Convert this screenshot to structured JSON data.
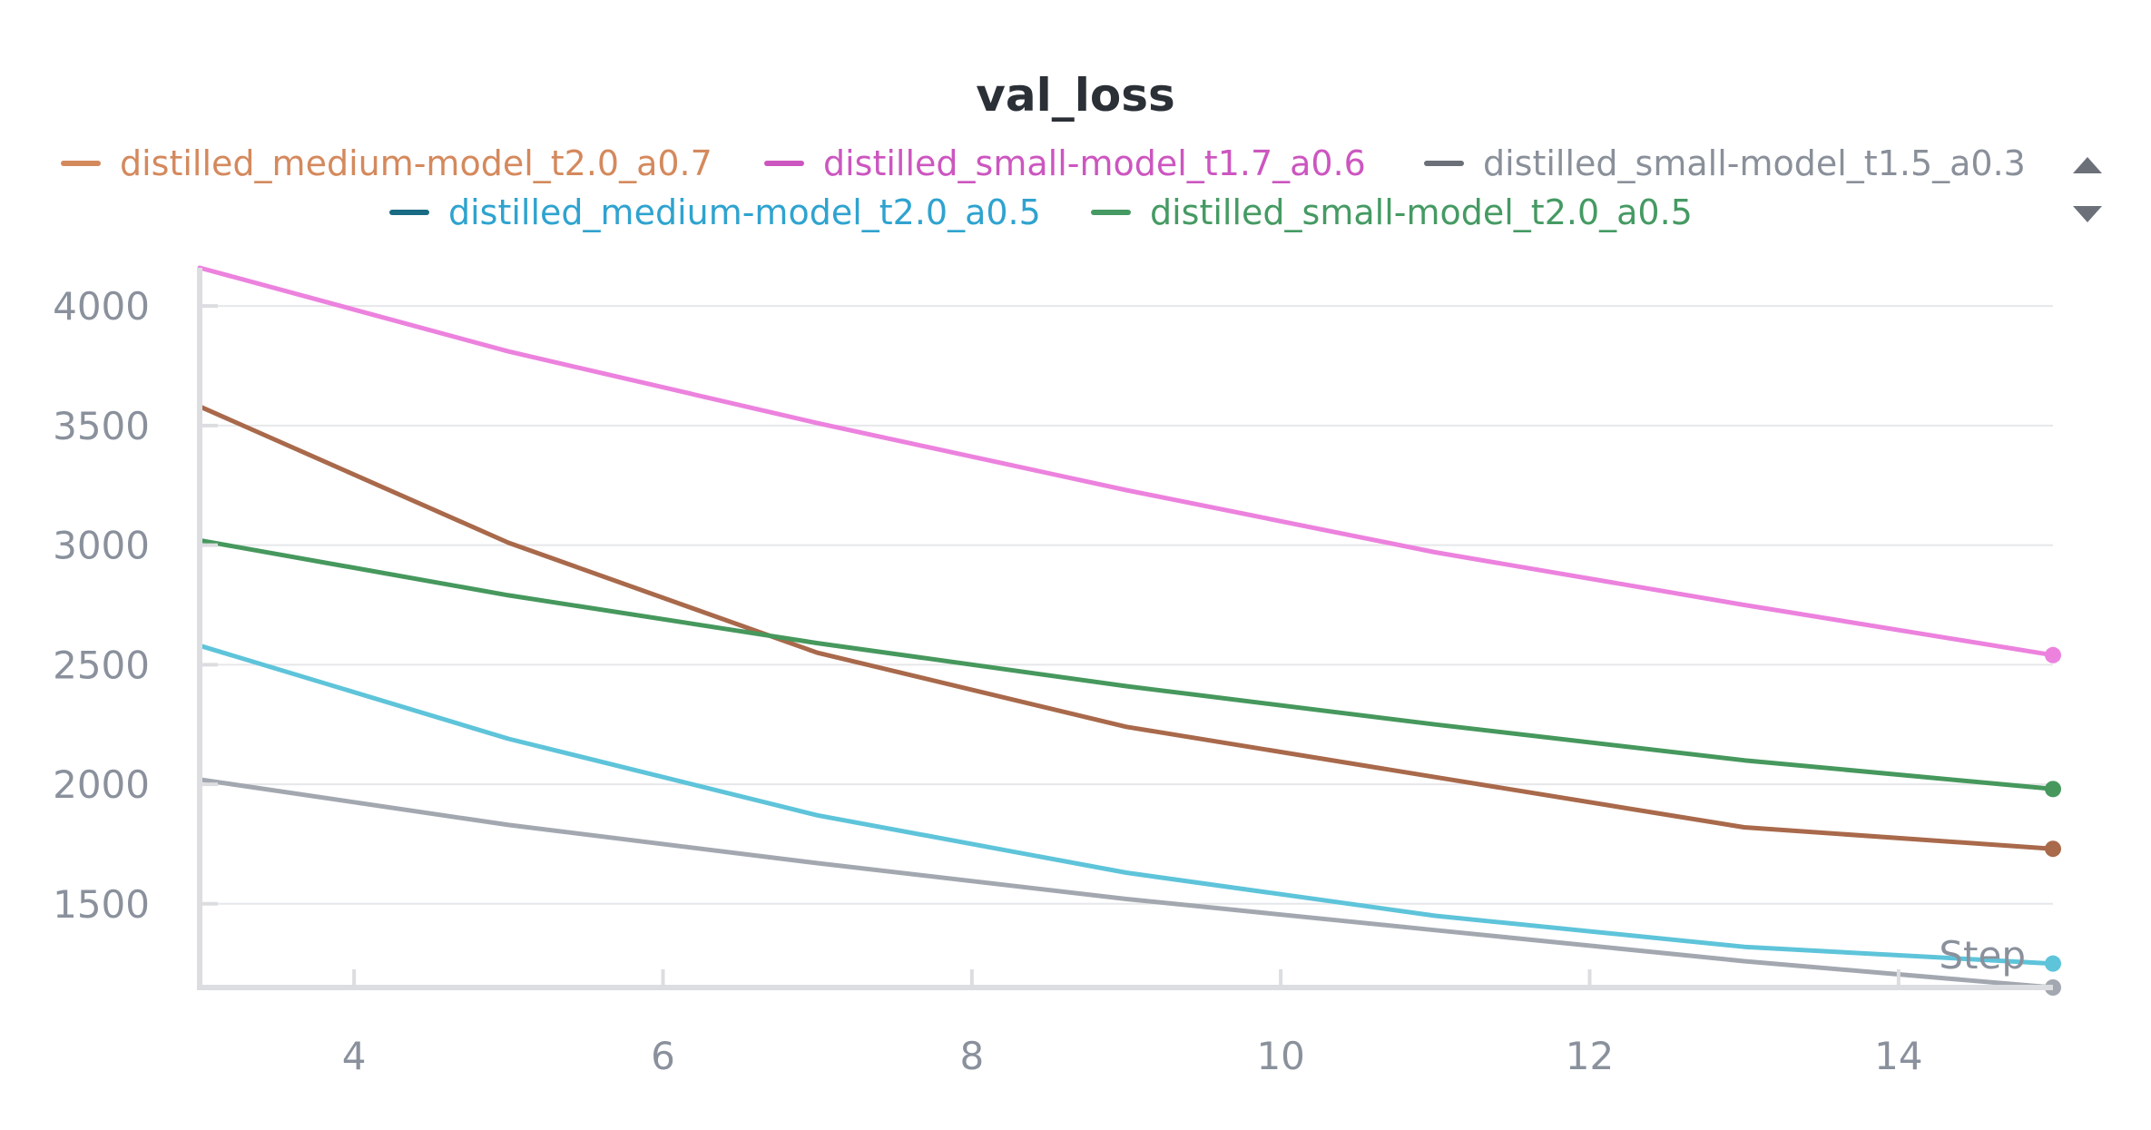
{
  "chart_data": {
    "type": "line",
    "title": "val_loss",
    "xlabel": "Step",
    "ylabel": "",
    "xlim": [
      3,
      15
    ],
    "ylim": [
      1150,
      4160
    ],
    "xticks": [
      4,
      6,
      8,
      10,
      12,
      14
    ],
    "yticks": [
      1500,
      2000,
      2500,
      3000,
      3500,
      4000
    ],
    "grid": true,
    "legend_position": "top",
    "series": [
      {
        "name": "distilled_medium-model_t2.0_a0.7",
        "legend_color": "#d4895d",
        "line_color": "#a9694b",
        "points": [
          [
            3,
            3580
          ],
          [
            5,
            3010
          ],
          [
            7,
            2550
          ],
          [
            9,
            2240
          ],
          [
            11,
            2030
          ],
          [
            13,
            1820
          ],
          [
            15,
            1730
          ]
        ]
      },
      {
        "name": "distilled_small-model_t1.7_a0.6",
        "legend_color": "#cc56c0",
        "line_color": "#ec82de",
        "points": [
          [
            3,
            4160
          ],
          [
            5,
            3810
          ],
          [
            7,
            3510
          ],
          [
            9,
            3230
          ],
          [
            11,
            2970
          ],
          [
            13,
            2750
          ],
          [
            15,
            2540
          ]
        ]
      },
      {
        "name": "distilled_small-model_t1.5_a0.3",
        "legend_color": "#6b7079",
        "line_color": "#a3a8b0",
        "points": [
          [
            3,
            2020
          ],
          [
            5,
            1830
          ],
          [
            7,
            1670
          ],
          [
            9,
            1520
          ],
          [
            11,
            1390
          ],
          [
            13,
            1260
          ],
          [
            15,
            1150
          ]
        ]
      },
      {
        "name": "distilled_medium-model_t2.0_a0.5",
        "legend_color": "#1a6b84",
        "line_color": "#5ec4da",
        "points": [
          [
            3,
            2580
          ],
          [
            5,
            2190
          ],
          [
            7,
            1870
          ],
          [
            9,
            1630
          ],
          [
            11,
            1450
          ],
          [
            13,
            1320
          ],
          [
            15,
            1250
          ]
        ]
      },
      {
        "name": "distilled_small-model_t2.0_a0.5",
        "legend_color": "#459a63",
        "line_color": "#46985d",
        "points": [
          [
            3,
            3020
          ],
          [
            5,
            2790
          ],
          [
            7,
            2590
          ],
          [
            9,
            2410
          ],
          [
            11,
            2250
          ],
          [
            13,
            2100
          ],
          [
            15,
            1980
          ]
        ]
      }
    ]
  },
  "legend_text_colors": [
    "#d4895d",
    "#cc56c0",
    "#8a909a",
    "#2fa3cf",
    "#459a63"
  ],
  "legend_scroll": {
    "up_icon": "triangle-up-icon",
    "down_icon": "triangle-down-icon"
  }
}
